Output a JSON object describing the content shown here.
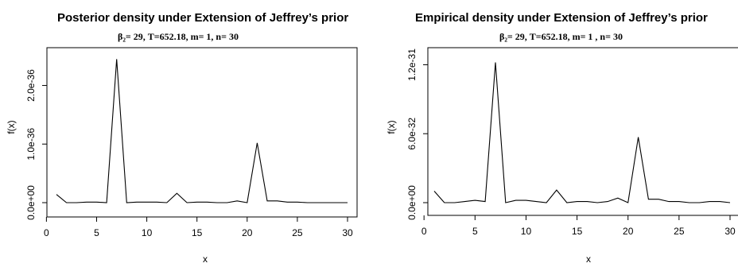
{
  "chart_data": [
    {
      "type": "line",
      "title": "Posterior density under Extension of Jeffrey’s prior",
      "subtitle": "β₂= 29, T=652.18, m= 1, n= 30",
      "xlabel": "x",
      "ylabel": "f(x)",
      "xlim": [
        1,
        30
      ],
      "ylim": [
        0,
        2.55e-36
      ],
      "x_ticks": [
        0,
        5,
        10,
        15,
        20,
        25,
        30
      ],
      "x_tick_labels": [
        "0",
        "5",
        "10",
        "15",
        "20",
        "25",
        "30"
      ],
      "y_ticks": [
        0,
        1e-36,
        2e-36
      ],
      "y_tick_labels": [
        "0.0e+00",
        "1.0e-36",
        "2.0e-36"
      ],
      "grid": false,
      "legend": "none",
      "color": "#000000",
      "x": [
        1,
        2,
        3,
        4,
        5,
        6,
        7,
        8,
        9,
        10,
        11,
        12,
        13,
        14,
        15,
        16,
        17,
        18,
        19,
        20,
        21,
        22,
        23,
        24,
        25,
        26,
        27,
        28,
        29,
        30
      ],
      "values": [
        1.4e-37,
        0,
        0,
        1e-38,
        1e-38,
        0,
        2.45e-36,
        0,
        1e-38,
        1e-38,
        1e-38,
        0,
        1.6e-37,
        0,
        1e-38,
        1e-38,
        0,
        0,
        3e-38,
        0,
        1.02e-36,
        3e-38,
        3e-38,
        1e-38,
        1e-38,
        0,
        0,
        0,
        0,
        0
      ]
    },
    {
      "type": "line",
      "title": "Empirical density under Extension of Jeffrey’s prior",
      "subtitle": "β₂= 29, T=652.18, m= 1 , n= 30",
      "xlabel": "x",
      "ylabel": "f(x)",
      "xlim": [
        1,
        30
      ],
      "ylim": [
        0,
        1.3e-31
      ],
      "x_ticks": [
        0,
        5,
        10,
        15,
        20,
        25,
        30
      ],
      "x_tick_labels": [
        "0",
        "5",
        "10",
        "15",
        "20",
        "25",
        "30"
      ],
      "y_ticks": [
        0,
        6e-32,
        1.2e-31
      ],
      "y_tick_labels": [
        "0.0e+00",
        "6.0e-32",
        "1.2e-31"
      ],
      "grid": false,
      "legend": "none",
      "color": "#000000",
      "x": [
        1,
        2,
        3,
        4,
        5,
        6,
        7,
        8,
        9,
        10,
        11,
        12,
        13,
        14,
        15,
        16,
        17,
        18,
        19,
        20,
        21,
        22,
        23,
        24,
        25,
        26,
        27,
        28,
        29,
        30
      ],
      "values": [
        1e-32,
        0,
        0,
        1e-33,
        2e-33,
        1e-33,
        1.22e-31,
        0,
        2e-33,
        2e-33,
        1e-33,
        0,
        1.1e-32,
        0,
        1e-33,
        1e-33,
        0,
        1e-33,
        4e-33,
        0,
        5.7e-32,
        3e-33,
        3e-33,
        1e-33,
        1e-33,
        0,
        0,
        1e-33,
        1e-33,
        0
      ]
    }
  ]
}
